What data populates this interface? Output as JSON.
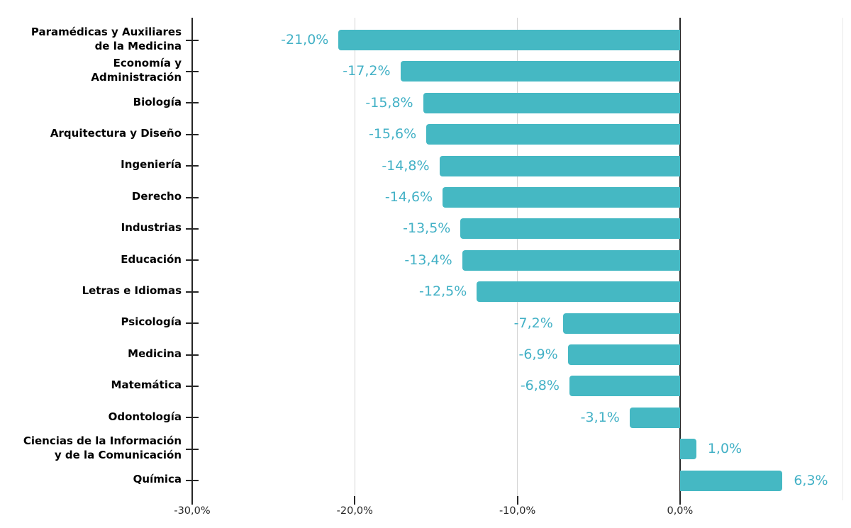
{
  "chart_data": {
    "type": "bar",
    "orientation": "horizontal",
    "title": "",
    "xlabel": "",
    "ylabel": "",
    "legend": "none",
    "grid": "vertical",
    "xlim": [
      -30,
      10.5
    ],
    "categories": [
      [
        "Paramédicas y Auxiliares",
        "de la Medicina"
      ],
      [
        "Economía y",
        "Administración"
      ],
      [
        "Biología"
      ],
      [
        "Arquitectura y Diseño"
      ],
      [
        "Ingeniería"
      ],
      [
        "Derecho"
      ],
      [
        "Industrias"
      ],
      [
        "Educación"
      ],
      [
        "Letras e Idiomas"
      ],
      [
        "Psicología"
      ],
      [
        "Medicina"
      ],
      [
        "Matemática"
      ],
      [
        "Odontología"
      ],
      [
        "Ciencias de la Información",
        "y de la Comunicación"
      ],
      [
        "Química"
      ]
    ],
    "values": [
      -21.0,
      -17.2,
      -15.8,
      -15.6,
      -14.8,
      -14.6,
      -13.5,
      -13.4,
      -12.5,
      -7.2,
      -6.9,
      -6.8,
      -3.1,
      1.0,
      6.3
    ],
    "value_labels": [
      "-21,0%",
      "-17,2%",
      "-15,8%",
      "-15,6%",
      "-14,8%",
      "-14,6%",
      "-13,5%",
      "-13,4%",
      "-12,5%",
      "-7,2%",
      "-6,9%",
      "-6,8%",
      "-3,1%",
      "1,0%",
      "6,3%"
    ],
    "x_ticks": [
      {
        "value": -30,
        "label": "-30,0%"
      },
      {
        "value": -20,
        "label": "-20,0%"
      },
      {
        "value": -10,
        "label": "-10,0%"
      },
      {
        "value": 0,
        "label": "0,0%"
      },
      {
        "value": 10,
        "label": ""
      }
    ],
    "colors": {
      "bar": "#45b8c3",
      "value_label": "#43b1c6",
      "category_label": "#000000",
      "axis_line": "#262626",
      "zero_line": "#262626",
      "gridline": "#d4d4d4",
      "gridline_light": "#e8e8e8",
      "tick_label": "#262626",
      "background": "#ffffff"
    }
  }
}
